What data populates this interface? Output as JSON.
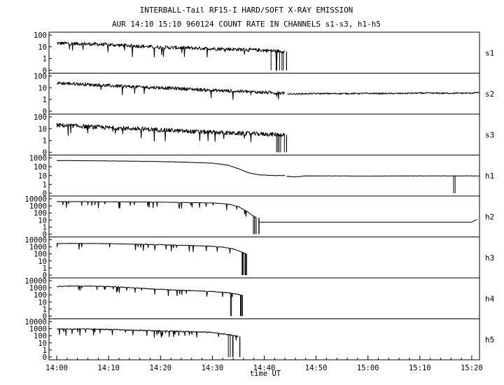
{
  "chart_data": {
    "type": "line",
    "title": "INTERBALL-Tail RF15-I HARD/SOFT X-RAY EMISSION",
    "subtitle": "AUR 14:10 15:10 960124  COUNT RATE IN CHANNELS s1-s3, h1-h5",
    "xlabel": "time UT",
    "x_ticks": [
      "14:00",
      "14:10",
      "14:20",
      "14:30",
      "14:40",
      "14:50",
      "15:00",
      "15:10",
      "15:20"
    ],
    "x_tick_minutes": [
      0,
      10,
      20,
      30,
      40,
      50,
      60,
      70,
      80
    ],
    "xlim_minutes": [
      -1.5,
      81.5
    ],
    "y_scale": "log",
    "colors": {
      "line": "#000000",
      "background": "#ffffff"
    },
    "panels": [
      {
        "channel": "s1",
        "y_ticks": [
          "100",
          "10",
          "1",
          "0"
        ],
        "series": [
          {
            "x": [
              0,
              5,
              10,
              15,
              20,
              25,
              30,
              35,
              40,
              44
            ],
            "y": [
              20,
              18,
              15,
              12,
              9,
              8,
              7,
              6,
              5,
              4
            ],
            "noise": 0.15,
            "spikes": 0.03
          }
        ],
        "drop_at": 44.3
      },
      {
        "channel": "s2",
        "y_ticks": [
          "100",
          "10",
          "1",
          "0"
        ],
        "series": [
          {
            "x": [
              0,
              5,
              10,
              15,
              20,
              25,
              30,
              35,
              40,
              44
            ],
            "y": [
              25,
              20,
              15,
              12,
              10,
              8,
              6,
              5,
              4,
              3.5
            ],
            "noise": 0.14,
            "spikes": 0.02
          },
          {
            "x": [
              44.5,
              46,
              50,
              55,
              60,
              65,
              70,
              75,
              80,
              81.5
            ],
            "y": [
              3,
              3,
              3.2,
              3.2,
              3.3,
              3.2,
              3.5,
              3.4,
              3.5,
              4
            ],
            "noise": 0.06,
            "spikes": 0
          }
        ],
        "drop_at": null
      },
      {
        "channel": "s3",
        "y_ticks": [
          "100",
          "10",
          "1",
          "0"
        ],
        "series": [
          {
            "x": [
              0,
              5,
              10,
              15,
              20,
              25,
              30,
              35,
              40,
              44
            ],
            "y": [
              20,
              16,
              12,
              10,
              8,
              6,
              5,
              4,
              3.5,
              3
            ],
            "noise": 0.18,
            "spikes": 0.05
          }
        ],
        "drop_at": 44.3
      },
      {
        "channel": "h1",
        "y_ticks": [
          "1000",
          "100",
          "10",
          "1",
          "0"
        ],
        "series": [
          {
            "x": [
              0,
              5,
              10,
              15,
              20,
              25,
              30,
              33,
              35,
              37,
              39,
              42,
              44
            ],
            "y": [
              500,
              480,
              450,
              420,
              380,
              320,
              250,
              150,
              60,
              20,
              12,
              10,
              10
            ],
            "noise": 0.02,
            "spikes": 0
          },
          {
            "x": [
              44.3,
              46,
              48,
              50,
              55,
              60,
              65,
              70,
              75,
              81.5
            ],
            "y": [
              8,
              7,
              9,
              9,
              9,
              8.5,
              9,
              9,
              9,
              9
            ],
            "noise": 0.02,
            "spikes": 0
          }
        ],
        "drop_at": null,
        "dropout_at": [
          76.5,
          76.8
        ]
      },
      {
        "channel": "h2",
        "y_ticks": [
          "10000",
          "1000",
          "100",
          "10",
          "1",
          "0"
        ],
        "series": [
          {
            "x": [
              0,
              5,
              10,
              15,
              20,
              25,
              30,
              33,
              35,
              36.5,
              37.5,
              38.5
            ],
            "y": [
              4000,
              4000,
              3800,
              3600,
              3400,
              3000,
              2600,
              1800,
              800,
              200,
              60,
              20
            ],
            "noise": 0.02,
            "spikes": 0.04
          },
          {
            "x": [
              39,
              50,
              60,
              70,
              80,
              81
            ],
            "y": [
              5,
              5,
              5,
              5,
              5,
              12
            ],
            "noise": 0,
            "spikes": 0
          }
        ],
        "drop_at": 39
      },
      {
        "channel": "h3",
        "y_ticks": [
          "10000",
          "1000",
          "100",
          "10",
          "1",
          "0"
        ],
        "series": [
          {
            "x": [
              0,
              5,
              10,
              15,
              20,
              25,
              30,
              32,
              34,
              35.5,
              36.5
            ],
            "y": [
              3000,
              3000,
              2800,
              2400,
              2000,
              1600,
              1200,
              900,
              500,
              200,
              100
            ],
            "noise": 0.04,
            "spikes": 0.03
          }
        ],
        "drop_at": 36.6
      },
      {
        "channel": "h4",
        "y_ticks": [
          "10000",
          "1000",
          "100",
          "10",
          "1",
          "0"
        ],
        "series": [
          {
            "x": [
              0,
              3,
              6,
              10,
              15,
              18,
              22,
              26,
              30,
              33,
              35.5
            ],
            "y": [
              1500,
              1800,
              1800,
              1500,
              1000,
              700,
              500,
              400,
              300,
              200,
              100
            ],
            "noise": 0.05,
            "spikes": 0.05
          }
        ],
        "drop_at": 35.8
      },
      {
        "channel": "h5",
        "y_ticks": [
          "10000",
          "1000",
          "100",
          "10",
          "1",
          "0"
        ],
        "series": [
          {
            "x": [
              0,
              5,
              10,
              15,
              20,
              25,
              30,
              33,
              35
            ],
            "y": [
              900,
              900,
              800,
              600,
              500,
              400,
              300,
              150,
              80
            ],
            "noise": 0.08,
            "spikes": 0.08
          }
        ],
        "drop_at": 35.3
      }
    ]
  }
}
